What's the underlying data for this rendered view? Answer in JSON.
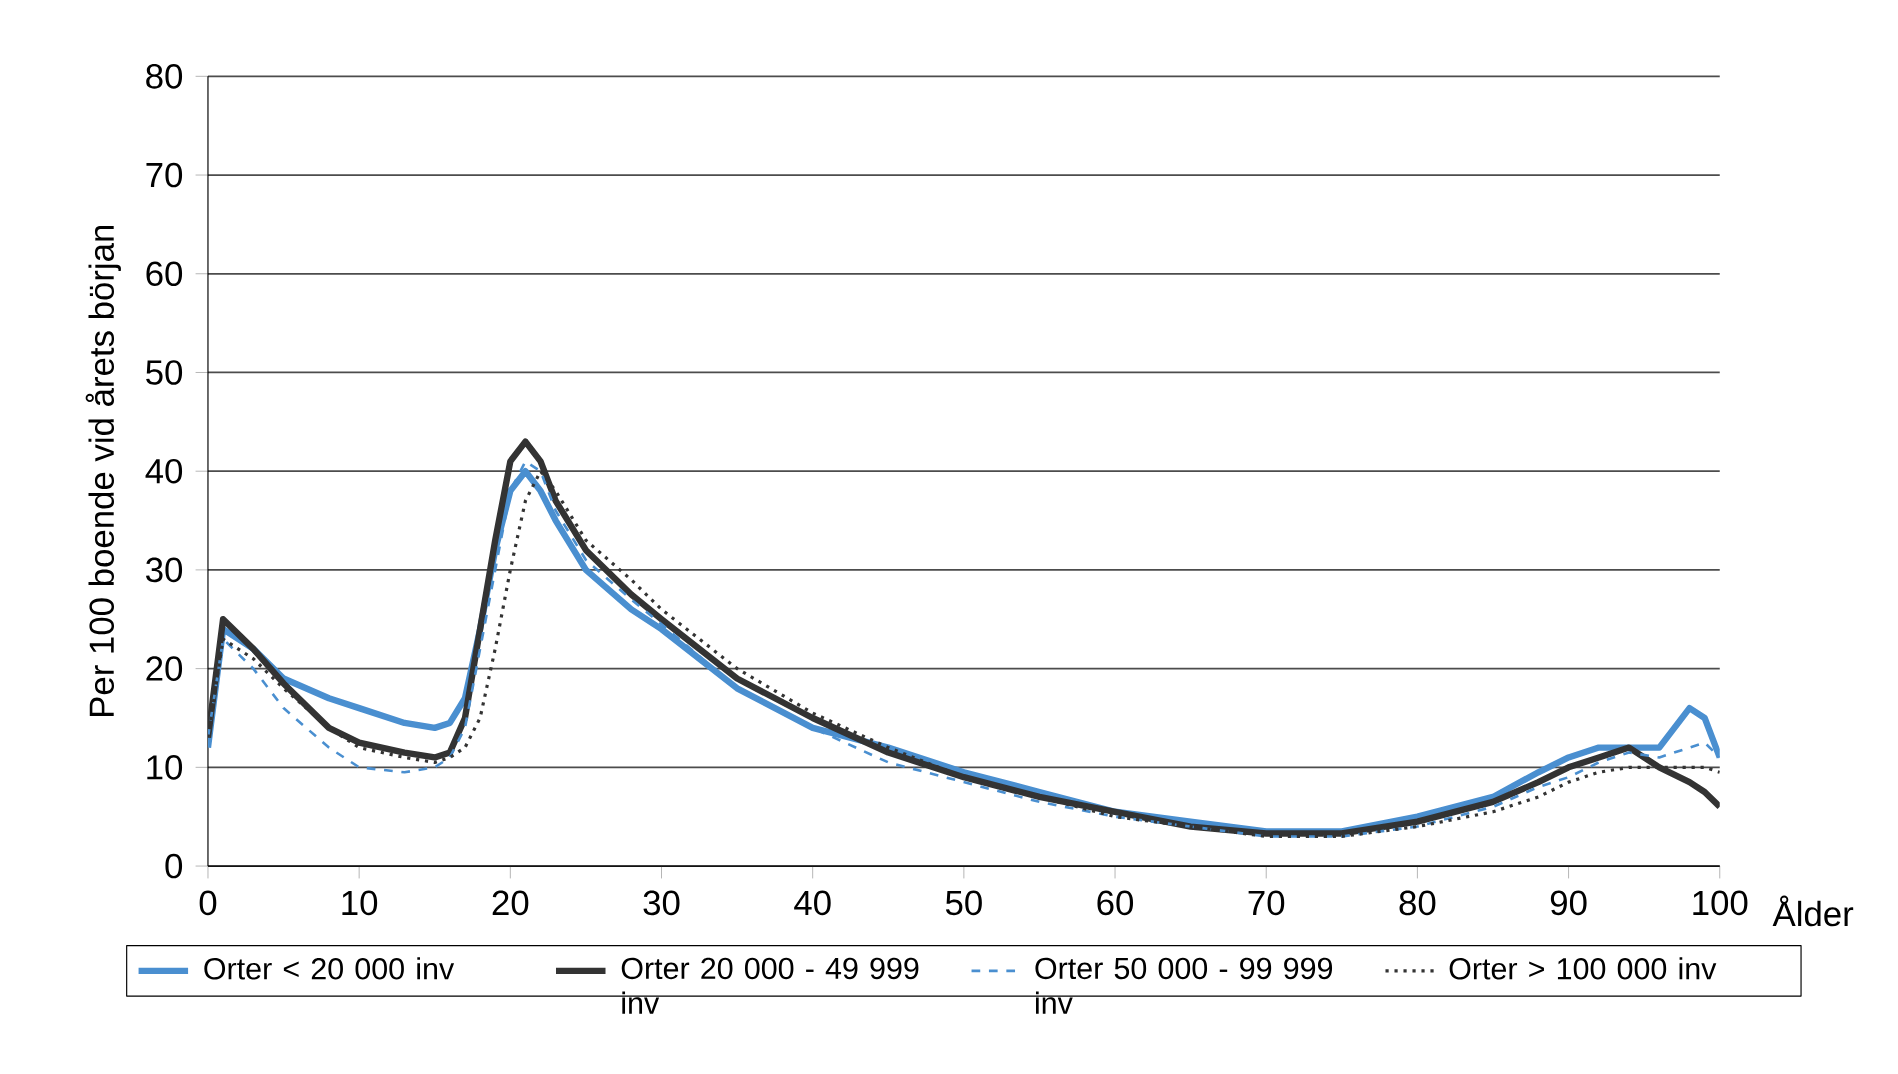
{
  "chart_data": {
    "type": "line",
    "xlabel": "Ålder",
    "ylabel": "Per 100 boende vid årets början",
    "xlim": [
      0,
      100
    ],
    "ylim": [
      0,
      80
    ],
    "xticks": [
      0,
      10,
      20,
      30,
      40,
      50,
      60,
      70,
      80,
      90,
      100
    ],
    "yticks": [
      0,
      10,
      20,
      30,
      40,
      50,
      60,
      70,
      80
    ],
    "grid": "y",
    "legend": "bottom",
    "marker": "none",
    "x": [
      0,
      1,
      3,
      5,
      8,
      10,
      13,
      15,
      16,
      17,
      18,
      19,
      20,
      21,
      22,
      23,
      25,
      28,
      30,
      35,
      40,
      45,
      50,
      55,
      60,
      65,
      70,
      75,
      80,
      85,
      88,
      90,
      92,
      94,
      96,
      98,
      99,
      100
    ],
    "series": [
      {
        "name": "Orter < 20 000 inv",
        "color": "#4a8fd0",
        "line_style": "solid",
        "values": [
          12,
          24,
          22,
          19,
          17,
          16,
          14.5,
          14,
          14.5,
          17,
          24,
          32,
          38,
          40,
          38,
          35,
          30,
          26,
          24,
          18,
          14,
          12,
          9.5,
          7.5,
          5.5,
          4.5,
          3.5,
          3.5,
          5,
          7,
          9.5,
          11,
          12,
          12,
          12,
          16,
          15,
          11
        ]
      },
      {
        "name": "Orter 20 000 - 49 999 inv",
        "color": "#333333",
        "line_style": "solid",
        "values": [
          13,
          25,
          22,
          18.5,
          14,
          12.5,
          11.5,
          11,
          11.5,
          15,
          24,
          33,
          41,
          43,
          41,
          37,
          32,
          27.5,
          25,
          19,
          15,
          11.5,
          9,
          7,
          5.5,
          4,
          3.3,
          3.3,
          4.5,
          6.5,
          8.5,
          10,
          11,
          12,
          10,
          8.5,
          7.5,
          6
        ]
      },
      {
        "name": "Orter 50 000 - 99 999 inv",
        "color": "#4a8fd0",
        "line_style": "dashed",
        "values": [
          13,
          23,
          20,
          16,
          12,
          10,
          9.5,
          10,
          11,
          14,
          22,
          30,
          38,
          41,
          40,
          36,
          31,
          27,
          24.5,
          18,
          14,
          10.5,
          8.5,
          6.5,
          5,
          4,
          3,
          3,
          4,
          6,
          8,
          9,
          10.5,
          11.5,
          11,
          12,
          12.5,
          11
        ]
      },
      {
        "name": "Orter > 100 000 inv",
        "color": "#333333",
        "line_style": "dotted",
        "values": [
          13,
          23,
          21,
          18,
          14,
          12,
          11,
          10.5,
          11,
          12,
          15,
          22,
          30,
          37,
          40,
          38,
          33,
          29,
          26,
          20,
          15.5,
          12,
          9,
          7,
          5,
          4,
          3,
          3,
          4,
          5.5,
          7,
          8.5,
          9.5,
          10,
          10,
          10,
          10,
          9.5
        ]
      }
    ]
  }
}
